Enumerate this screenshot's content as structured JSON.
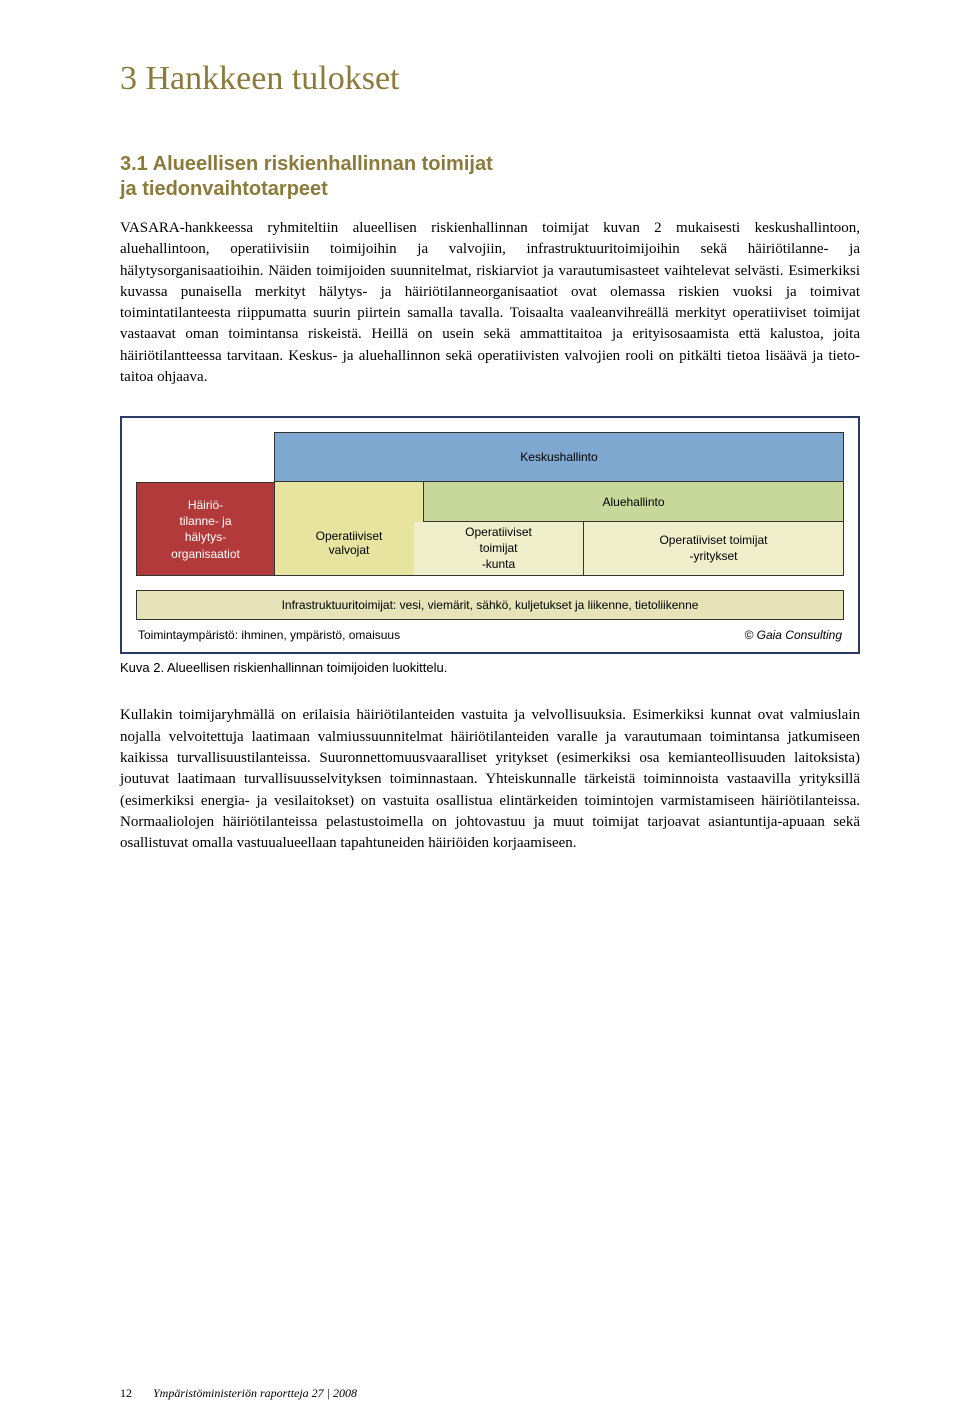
{
  "chapter": {
    "title": "3 Hankkeen tulokset"
  },
  "section": {
    "number": "3.1",
    "title_line1": "Alueellisen riskienhallinnan toimijat",
    "title_line2": "ja tiedonvaihtotarpeet"
  },
  "paragraphs": {
    "p1": "VASARA-hankkeessa ryhmiteltiin alueellisen riskienhallinnan toimijat kuvan 2 mukaisesti keskushallintoon, aluehallintoon, operatiivisiin toimijoihin ja valvojiin, infrastruktuuritoimijoihin sekä häiriötilanne- ja hälytysorganisaatioihin. Näiden toimijoiden suunnitelmat, riskiarviot ja varautumisasteet vaihtelevat selvästi. Esimerkiksi kuvassa punaisella merkityt hälytys- ja häiriötilanneorganisaatiot ovat olemassa riskien vuoksi ja toimivat toimintatilanteesta riippumatta suurin piirtein samalla tavalla. Toisaalta vaaleanvihreällä merkityt operatiiviset toimijat vastaavat oman toimintansa riskeistä. Heillä on usein sekä ammattitaitoa ja erityisosaamista että kalustoa, joita häiriötilantteessa tarvitaan. Keskus- ja aluehallinnon sekä operatiivisten valvojien rooli on pitkälti tietoa lisäävä ja tieto-taitoa ohjaava.",
    "p2": "Kullakin toimijaryhmällä on erilaisia häiriötilanteiden vastuita ja velvollisuuksia. Esimerkiksi kunnat ovat valmiuslain nojalla velvoitettuja laatimaan valmiussuunnitelmat häiriötilanteiden varalle ja varautumaan toimintansa jatkumiseen kaikissa turvallisuustilanteissa. Suuronnettomuusvaaralliset yritykset (esimerkiksi osa kemianteollisuuden laitoksista) joutuvat laatimaan turvallisuusselvityksen toiminnastaan. Yhteiskunnalle tärkeistä toiminnoista vastaavilla yrityksillä (esimerkiksi energia- ja vesilaitokset) on vastuita osallistua elintärkeiden toimintojen varmistamiseen häiriötilanteissa. Normaaliolojen häiriötilanteissa pelastustoimella on johtovastuu ja muut toimijat tarjoavat asiantuntija-apuaan sekä osallistuvat omalla vastuualueellaan tapahtuneiden häiriöiden korjaamiseen."
  },
  "diagram": {
    "frame_border_color": "#2a3a66",
    "background_color": "#ffffff",
    "font_family": "Arial",
    "label_fontsize": 12,
    "left_block": {
      "text_line1": "Häiriö-",
      "text_line2": "tilanne- ja",
      "text_line3": "hälytys-",
      "text_line4": "organisaatiot",
      "fill": "#b23a3a",
      "text_color": "#ffffff"
    },
    "keskushallinto": {
      "label": "Keskushallinto",
      "fill": "#7ea8d0"
    },
    "aluehallinto": {
      "label": "Aluehallinto",
      "fill": "#c8d89a"
    },
    "op_valvojat": {
      "line1": "Operatiiviset",
      "line2": "valvojat",
      "fill": "#e6e49f"
    },
    "op_toimijat_kunta": {
      "line1": "Operatiiviset",
      "line2": "toimijat",
      "line3": "-kunta",
      "fill": "#eeeecb"
    },
    "op_toimijat_yritykset": {
      "line1": "Operatiiviset toimijat",
      "line2": "-yritykset",
      "fill": "#eeeecb"
    },
    "infra": {
      "label": "Infrastruktuuritoimijat: vesi, viemärit, sähkö, kuljetukset ja liikenne, tietoliikenne",
      "fill": "#e6e3b8"
    },
    "environment": {
      "label": "Toimintaympäristö: ihminen, ympäristö, omaisuus"
    },
    "credit": "© Gaia Consulting"
  },
  "caption": "Kuva 2. Alueellisen riskienhallinnan toimijoiden luokittelu.",
  "footer": {
    "page_number": "12",
    "source": "Ympäristöministeriön raportteja 27 | 2008"
  }
}
